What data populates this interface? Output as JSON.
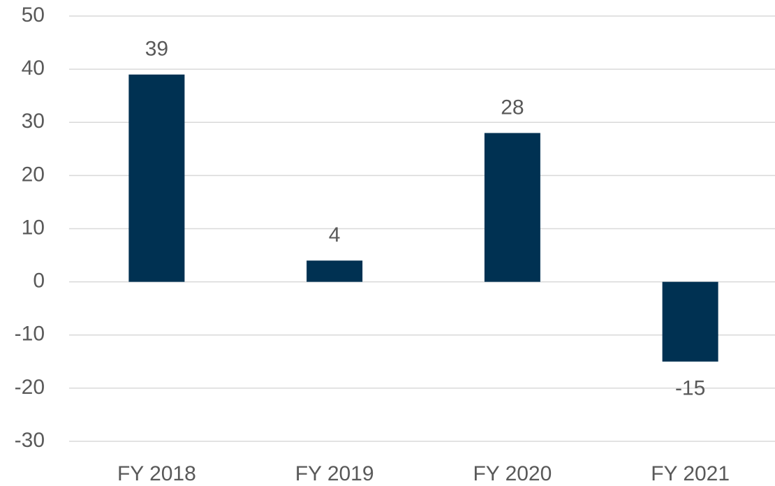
{
  "chart_data": {
    "type": "bar",
    "categories": [
      "FY 2018",
      "FY 2019",
      "FY 2020",
      "FY 2021"
    ],
    "values": [
      39,
      4,
      28,
      -15
    ],
    "color": "#003152",
    "ylim": [
      -30,
      50
    ],
    "yticks": [
      -30,
      -20,
      -10,
      0,
      10,
      20,
      30,
      40,
      50
    ],
    "grid": true,
    "data_labels": true
  }
}
